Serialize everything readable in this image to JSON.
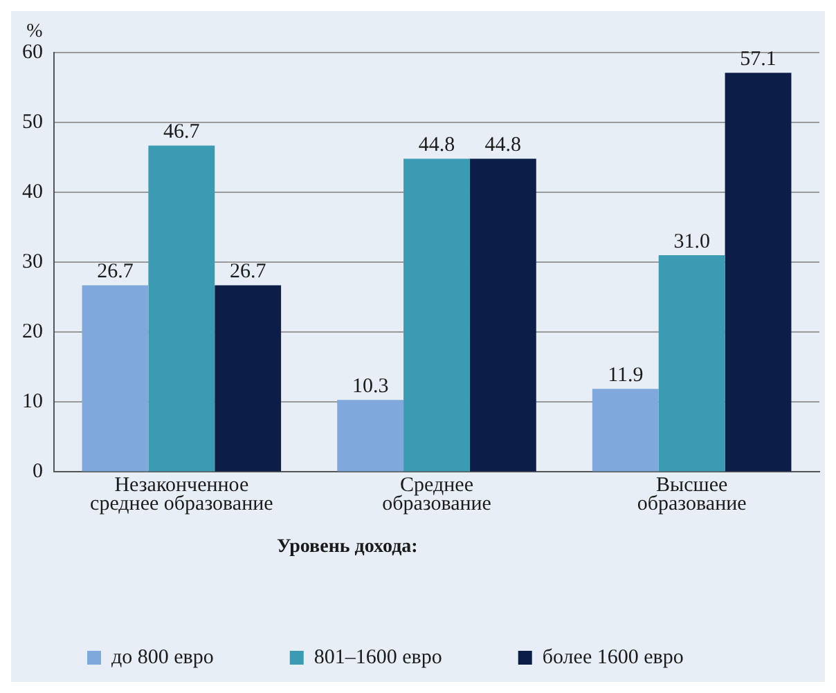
{
  "chart_data": {
    "type": "bar",
    "ylabel": "%",
    "legend_title": "Уровень дохода:",
    "categories": [
      "Незаконченное среднее образование",
      "Среднее образование",
      "Высшее образование"
    ],
    "series": [
      {
        "name": "до 800 евро",
        "color": "#7fa9dc",
        "values": [
          26.7,
          10.3,
          11.9
        ],
        "value_labels": [
          "26.7",
          "10.3",
          "11.9"
        ]
      },
      {
        "name": "801–1600 евро",
        "color": "#3a9bb2",
        "values": [
          46.7,
          44.8,
          31.0
        ],
        "value_labels": [
          "46.7",
          "44.8",
          "31.0"
        ]
      },
      {
        "name": "более 1600 евро",
        "color": "#0c1d48",
        "values": [
          26.7,
          44.8,
          57.1
        ],
        "value_labels": [
          "26.7",
          "44.8",
          "57.1"
        ]
      }
    ],
    "ylim": [
      0,
      60
    ],
    "yticks": [
      0,
      10,
      20,
      30,
      40,
      50,
      60
    ],
    "grid": "y",
    "legend": "bottom"
  }
}
